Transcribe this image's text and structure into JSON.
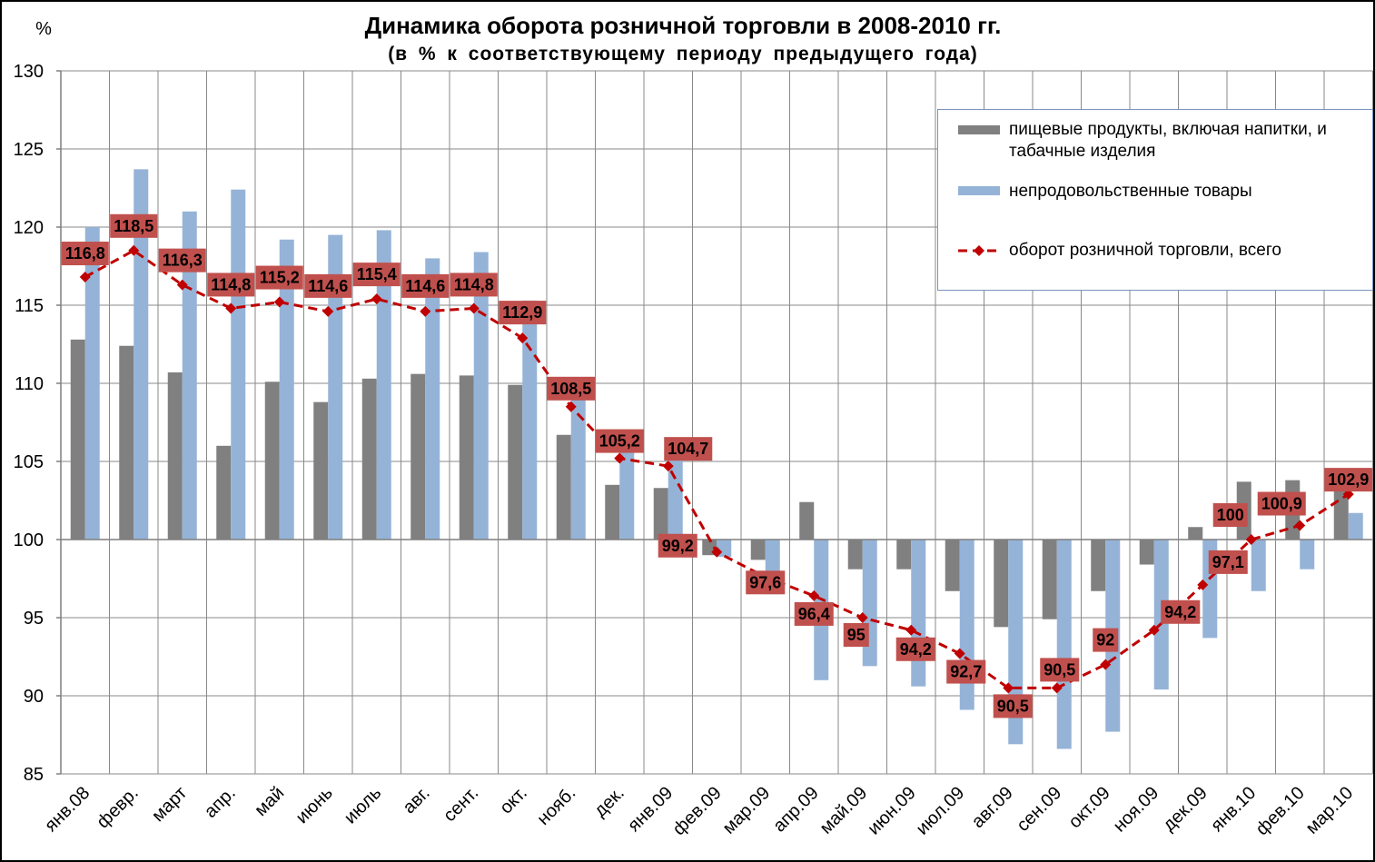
{
  "chart_data": {
    "type": "bar",
    "title": "Динамика оборота розничной торговли в 2008-2010 гг.",
    "subtitle": "(в % к соответствующему периоду предыдущего года)",
    "xlabel": "",
    "ylabel": "%",
    "ylim": [
      85,
      130
    ],
    "yticks": [
      85,
      90,
      95,
      100,
      105,
      110,
      115,
      120,
      125,
      130
    ],
    "baseline": 100,
    "grid": true,
    "legend": "top-right",
    "categories": [
      "янв.08",
      "февр.",
      "март",
      "апр.",
      "май",
      "июнь",
      "июль",
      "авг.",
      "сент.",
      "окт.",
      "нояб.",
      "дек.",
      "янв.09",
      "фев.09",
      "мар.09",
      "апр.09",
      "май.09",
      "июн.09",
      "июл.09",
      "авг.09",
      "сен.09",
      "окт.09",
      "ноя.09",
      "дек.09",
      "янв.10",
      "фев.10",
      "мар.10"
    ],
    "series": [
      {
        "name": "пищевые продукты, включая напитки, и табачные изделия",
        "type": "bar",
        "color": "#808080",
        "values": [
          112.8,
          112.4,
          110.7,
          106.0,
          110.1,
          108.8,
          110.3,
          110.6,
          110.5,
          109.9,
          106.7,
          103.5,
          103.3,
          99.0,
          98.7,
          102.4,
          98.1,
          98.1,
          96.7,
          94.4,
          94.9,
          96.7,
          98.4,
          100.8,
          103.7,
          103.8,
          103.2
        ]
      },
      {
        "name": "непродовольственные товары",
        "type": "bar",
        "color": "#95b3d7",
        "values": [
          120.0,
          123.7,
          121.0,
          122.4,
          119.2,
          119.5,
          119.8,
          118.0,
          118.4,
          115.3,
          109.2,
          105.8,
          105.3,
          98.9,
          96.5,
          91.0,
          91.9,
          90.6,
          89.1,
          86.9,
          86.6,
          87.7,
          90.4,
          93.7,
          96.7,
          98.1,
          101.7
        ]
      },
      {
        "name": "оборот розничной торговли, всего",
        "type": "line",
        "color": "#c00000",
        "line_style": "dashed",
        "marker": "diamond",
        "values": [
          116.8,
          118.5,
          116.3,
          114.8,
          115.2,
          114.6,
          115.4,
          114.6,
          114.8,
          112.9,
          108.5,
          105.2,
          104.7,
          99.2,
          97.6,
          96.4,
          95,
          94.2,
          92.7,
          90.5,
          90.5,
          92,
          94.2,
          97.1,
          100,
          100.9,
          102.9
        ],
        "labels": [
          "116,8",
          "118,5",
          "116,3",
          "114,8",
          "115,2",
          "114,6",
          "115,4",
          "114,6",
          "114,8",
          "112,9",
          "108,5",
          "105,2",
          "104,7",
          "99,2",
          "97,6",
          "96,4",
          "95",
          "94,2",
          "92,7",
          "90,5",
          "90,5",
          "92",
          "94,2",
          "97,1",
          "100",
          "100,9",
          "102,9"
        ]
      }
    ],
    "data_label_color": "#c0504d"
  }
}
